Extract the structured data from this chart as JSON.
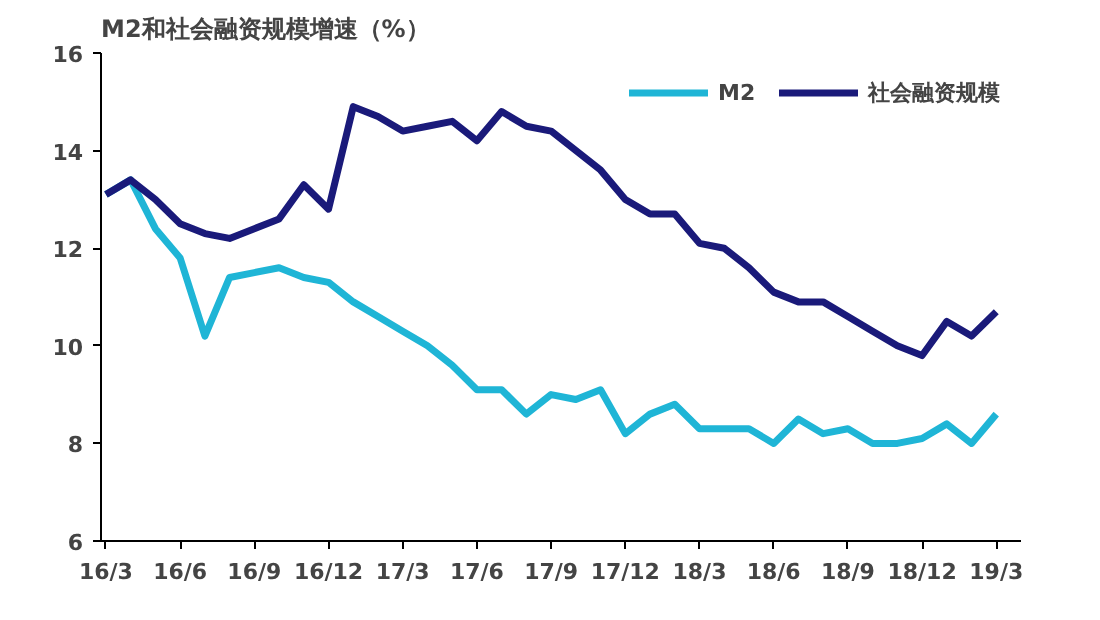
{
  "chart_data": {
    "type": "line",
    "title": "M2和社会融资规模增速（%）",
    "categories": [
      "16/3",
      null,
      null,
      "16/6",
      null,
      null,
      "16/9",
      null,
      null,
      "16/12",
      null,
      null,
      "17/3",
      null,
      null,
      "17/6",
      null,
      null,
      "17/9",
      null,
      null,
      "17/12",
      null,
      null,
      "18/3",
      null,
      null,
      "18/6",
      null,
      null,
      "18/9",
      null,
      null,
      "18/12",
      null,
      null,
      "19/3"
    ],
    "series": [
      {
        "name": "M2",
        "color": "#1fb5d6",
        "values": [
          13.1,
          13.4,
          12.4,
          11.8,
          10.2,
          11.4,
          11.5,
          11.6,
          11.4,
          11.3,
          10.9,
          10.6,
          10.3,
          10.0,
          9.6,
          9.1,
          9.1,
          8.6,
          9.0,
          8.9,
          9.1,
          8.2,
          8.6,
          8.8,
          8.3,
          8.3,
          8.3,
          8.0,
          8.5,
          8.2,
          8.3,
          8.0,
          8.0,
          8.1,
          8.4,
          8.0,
          8.6
        ]
      },
      {
        "name": "社会融资规模",
        "color": "#1a1a7a",
        "values": [
          13.1,
          13.4,
          13.0,
          12.5,
          12.3,
          12.2,
          12.4,
          12.6,
          13.3,
          12.8,
          14.9,
          14.7,
          14.4,
          14.5,
          14.6,
          14.2,
          14.8,
          14.5,
          14.4,
          14.0,
          13.6,
          13.0,
          12.7,
          12.7,
          12.1,
          12.0,
          11.6,
          11.1,
          10.9,
          10.9,
          10.6,
          10.3,
          10.0,
          9.8,
          10.5,
          10.2,
          10.7
        ]
      }
    ],
    "ylim": [
      6,
      16
    ],
    "yticks": [
      6,
      8,
      10,
      12,
      14,
      16
    ],
    "grid": false,
    "legend": "top right",
    "line_style": "solid",
    "marker": "none"
  }
}
